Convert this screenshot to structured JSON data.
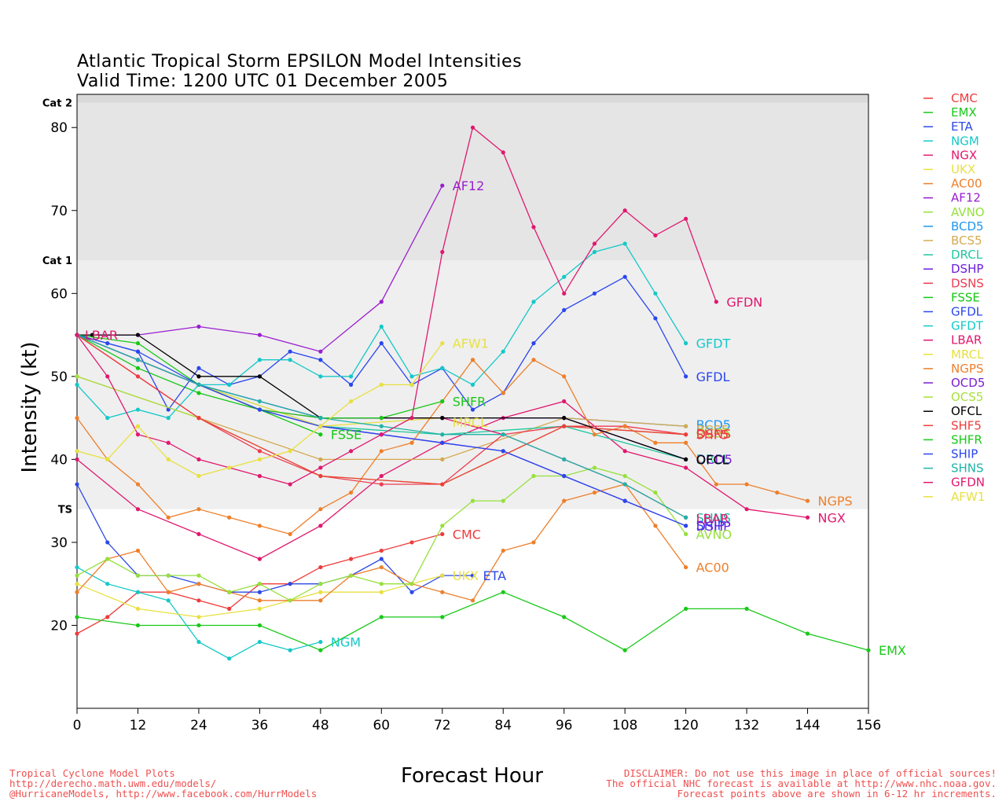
{
  "title": {
    "line1": "Atlantic Tropical Storm EPSILON Model Intensities",
    "line2": "Valid Time: 1200 UTC 01 December 2005"
  },
  "footer": {
    "left": [
      "Tropical Cyclone Model Plots",
      "http://derecho.math.uwm.edu/models/",
      "@HurricaneModels, http://www.facebook.com/HurrModels"
    ],
    "right": [
      "DISCLAIMER: Do not use this image in place of official sources!",
      "The official NHC forecast is available at http://www.nhc.noaa.gov.",
      "Forecast points above are shown in 6-12 hr increments."
    ]
  },
  "chart_data": {
    "type": "line",
    "xlabel": "Forecast Hour",
    "ylabel": "Intensity (kt)",
    "xlim": [
      0,
      156
    ],
    "ylim": [
      10,
      84
    ],
    "xticks": [
      0,
      12,
      24,
      36,
      48,
      60,
      72,
      84,
      96,
      108,
      120,
      132,
      144,
      156
    ],
    "yticks": [
      20,
      30,
      40,
      50,
      60,
      70,
      80
    ],
    "category_bands": [
      {
        "label": "TS",
        "from": 34,
        "to": 64,
        "color": "#efefef"
      },
      {
        "label": "Cat 1",
        "from": 64,
        "to": 83,
        "color": "#e5e5e5"
      },
      {
        "label": "Cat 2",
        "from": 83,
        "to": 84,
        "color": "#d9d9d9"
      }
    ],
    "series": [
      {
        "name": "CMC",
        "color": "#ef3b3b",
        "x": [
          0,
          6,
          12,
          18,
          24,
          30,
          36,
          42,
          48,
          54,
          60,
          66,
          72
        ],
        "y": [
          19,
          21,
          24,
          24,
          23,
          22,
          25,
          25,
          27,
          28,
          29,
          30,
          31
        ]
      },
      {
        "name": "EMX",
        "color": "#19c919",
        "x": [
          0,
          12,
          24,
          36,
          48,
          60,
          72,
          84,
          96,
          108,
          120,
          132,
          144,
          156
        ],
        "y": [
          21,
          20,
          20,
          20,
          17,
          21,
          21,
          24,
          21,
          17,
          22,
          22,
          19,
          17
        ]
      },
      {
        "name": "ETA",
        "color": "#2d4ae6",
        "x": [
          0,
          6,
          12,
          18,
          24,
          30,
          36,
          42,
          48,
          54,
          60,
          66,
          72,
          78
        ],
        "y": [
          37,
          30,
          26,
          26,
          25,
          24,
          24,
          25,
          25,
          26,
          28,
          24,
          26,
          26
        ]
      },
      {
        "name": "NGM",
        "color": "#14c8c8",
        "x": [
          0,
          6,
          12,
          18,
          24,
          30,
          36,
          42,
          48
        ],
        "y": [
          27,
          25,
          24,
          23,
          18,
          16,
          18,
          17,
          18
        ]
      },
      {
        "name": "NGX",
        "color": "#e0186e",
        "x": [
          0,
          12,
          24,
          36,
          48,
          60,
          72,
          84,
          96,
          108,
          120,
          132,
          144
        ],
        "y": [
          40,
          34,
          31,
          28,
          32,
          38,
          42,
          45,
          47,
          41,
          39,
          34,
          33
        ]
      },
      {
        "name": "UKX",
        "color": "#e8e040",
        "x": [
          0,
          12,
          24,
          36,
          48,
          60,
          72
        ],
        "y": [
          25,
          22,
          21,
          22,
          24,
          24,
          26
        ]
      },
      {
        "name": "AC00",
        "color": "#ee7f2a",
        "x": [
          0,
          6,
          12,
          18,
          24,
          30,
          36,
          42,
          48,
          54,
          60,
          66,
          72,
          78,
          84,
          90,
          96,
          102,
          108,
          114,
          120
        ],
        "y": [
          24,
          28,
          29,
          24,
          25,
          24,
          23,
          23,
          23,
          26,
          27,
          25,
          24,
          23,
          29,
          30,
          35,
          36,
          37,
          32,
          27
        ]
      },
      {
        "name": "AF12",
        "color": "#9a1ed0",
        "x": [
          0,
          12,
          24,
          36,
          48,
          60,
          72
        ],
        "y": [
          55,
          55,
          56,
          55,
          53,
          59,
          73
        ]
      },
      {
        "name": "AVNO",
        "color": "#96e03c",
        "x": [
          0,
          6,
          12,
          18,
          24,
          30,
          36,
          42,
          48,
          54,
          60,
          66,
          72,
          78,
          84,
          90,
          96,
          102,
          108,
          114,
          120
        ],
        "y": [
          26,
          28,
          26,
          26,
          26,
          24,
          25,
          23,
          25,
          26,
          25,
          25,
          32,
          35,
          35,
          38,
          38,
          39,
          38,
          36,
          31
        ]
      },
      {
        "name": "BCD5",
        "color": "#1e96ee",
        "x": [
          0,
          24,
          48,
          72,
          96,
          120
        ],
        "y": [
          55,
          49,
          45,
          45,
          45,
          44
        ]
      },
      {
        "name": "BCS5",
        "color": "#d4aa50",
        "x": [
          0,
          24,
          48,
          72,
          96,
          120
        ],
        "y": [
          50,
          45,
          40,
          40,
          45,
          44
        ]
      },
      {
        "name": "DRCL",
        "color": "#20c8a0",
        "x": [
          0,
          24,
          48,
          72,
          96,
          120
        ],
        "y": [
          55,
          49,
          44,
          43,
          44,
          40
        ]
      },
      {
        "name": "DSHP",
        "color": "#6a1ee0",
        "x": [
          0,
          12,
          24,
          36,
          48,
          60,
          72,
          84,
          96,
          108,
          120
        ],
        "y": [
          55,
          52,
          49,
          46,
          44,
          43,
          42,
          41,
          38,
          35,
          32
        ]
      },
      {
        "name": "DSNS",
        "color": "#ee3c50",
        "x": [
          0,
          12,
          24,
          36,
          48,
          60,
          72,
          84,
          96,
          108,
          120
        ],
        "y": [
          55,
          50,
          45,
          41,
          38,
          37,
          37,
          43,
          44,
          44,
          43
        ]
      },
      {
        "name": "FSSE",
        "color": "#14c814",
        "x": [
          0,
          12,
          24,
          36,
          48
        ],
        "y": [
          55,
          51,
          48,
          46,
          43
        ]
      },
      {
        "name": "GFDL",
        "color": "#2a46ee",
        "x": [
          0,
          6,
          12,
          18,
          24,
          30,
          36,
          42,
          48,
          54,
          60,
          66,
          72,
          78,
          84,
          90,
          96,
          102,
          108,
          114,
          120
        ],
        "y": [
          55,
          54,
          53,
          46,
          51,
          49,
          50,
          53,
          52,
          49,
          54,
          49,
          51,
          46,
          48,
          54,
          58,
          60,
          62,
          57,
          50
        ]
      },
      {
        "name": "GFDT",
        "color": "#14c8c8",
        "x": [
          0,
          6,
          12,
          18,
          24,
          30,
          36,
          42,
          48,
          54,
          60,
          66,
          72,
          78,
          84,
          90,
          96,
          102,
          108,
          114,
          120
        ],
        "y": [
          49,
          45,
          46,
          45,
          49,
          49,
          52,
          52,
          50,
          50,
          56,
          50,
          51,
          49,
          53,
          59,
          62,
          65,
          66,
          60,
          54
        ]
      },
      {
        "name": "LBAR",
        "color": "#e0186e",
        "x": [
          0,
          12,
          24,
          36,
          48,
          60,
          72,
          84,
          96,
          108,
          120
        ],
        "y": [
          55,
          52,
          49,
          46,
          45,
          45,
          45,
          43,
          40,
          37,
          33
        ]
      },
      {
        "name": "MRCL",
        "color": "#e8e040",
        "x": [
          0,
          24,
          48,
          72
        ],
        "y": [
          55,
          49,
          44,
          45
        ]
      },
      {
        "name": "NGPS",
        "color": "#ee7f2a",
        "x": [
          0,
          6,
          12,
          18,
          24,
          30,
          36,
          42,
          48,
          54,
          60,
          66,
          72,
          78,
          84,
          90,
          96,
          102,
          108,
          114,
          120,
          126,
          132,
          138,
          144
        ],
        "y": [
          45,
          40,
          37,
          33,
          34,
          33,
          32,
          31,
          34,
          36,
          41,
          42,
          47,
          52,
          48,
          52,
          50,
          43,
          44,
          42,
          42,
          37,
          37,
          36,
          35
        ]
      },
      {
        "name": "OCD5",
        "color": "#7a1ed0",
        "x": [
          0,
          24,
          48,
          72,
          96,
          120
        ],
        "y": [
          55,
          49,
          45,
          45,
          45,
          40
        ]
      },
      {
        "name": "OCS5",
        "color": "#a8e03c",
        "x": [
          0,
          24,
          48,
          72,
          96,
          120
        ],
        "y": [
          50,
          45,
          38,
          37,
          44,
          43
        ]
      },
      {
        "name": "OFCL",
        "color": "#000000",
        "x": [
          0,
          3,
          12,
          24,
          36,
          48,
          72,
          96,
          120
        ],
        "y": [
          55,
          55,
          55,
          50,
          50,
          45,
          45,
          45,
          40
        ]
      },
      {
        "name": "SHF5",
        "color": "#ef3b3b",
        "x": [
          0,
          24,
          48,
          72,
          96,
          120
        ],
        "y": [
          55,
          45,
          38,
          37,
          44,
          43
        ]
      },
      {
        "name": "SHFR",
        "color": "#19c919",
        "x": [
          0,
          12,
          24,
          36,
          48,
          60,
          72
        ],
        "y": [
          55,
          54,
          49,
          46,
          45,
          45,
          47
        ]
      },
      {
        "name": "SHIP",
        "color": "#2a46ee",
        "x": [
          0,
          12,
          24,
          36,
          48,
          60,
          72,
          84,
          96,
          108,
          120
        ],
        "y": [
          55,
          53,
          49,
          46,
          44,
          43,
          42,
          41,
          38,
          35,
          32
        ]
      },
      {
        "name": "SHNS",
        "color": "#20b4a8",
        "x": [
          0,
          12,
          24,
          36,
          48,
          60,
          72,
          84,
          96,
          108,
          120
        ],
        "y": [
          55,
          52,
          49,
          47,
          45,
          44,
          43,
          43,
          40,
          37,
          33
        ]
      },
      {
        "name": "GFDN",
        "color": "#e0186e",
        "x": [
          0,
          6,
          12,
          18,
          24,
          30,
          36,
          42,
          48,
          54,
          60,
          66,
          72,
          78,
          84,
          90,
          96,
          102,
          108,
          114,
          120,
          126
        ],
        "y": [
          55,
          50,
          43,
          42,
          40,
          39,
          38,
          37,
          39,
          41,
          43,
          45,
          65,
          80,
          77,
          68,
          60,
          66,
          70,
          67,
          69,
          59
        ]
      },
      {
        "name": "AFW1",
        "color": "#e8e040",
        "x": [
          0,
          6,
          12,
          18,
          24,
          30,
          36,
          42,
          48,
          54,
          60,
          66,
          72
        ],
        "y": [
          41,
          40,
          44,
          40,
          38,
          39,
          40,
          41,
          44,
          47,
          49,
          49,
          54
        ]
      }
    ],
    "end_labels": [
      {
        "text": "LBAR",
        "series": "LBAR",
        "x": 0,
        "y": 55,
        "offset": "right-near"
      },
      {
        "text": "AF12",
        "series": "AF12",
        "x": 72,
        "y": 73
      },
      {
        "text": "AFW1",
        "series": "AFW1",
        "x": 72,
        "y": 54
      },
      {
        "text": "SHFR",
        "series": "SHFR",
        "x": 72,
        "y": 47
      },
      {
        "text": "MRCL",
        "series": "MRCL",
        "x": 72,
        "y": 44.5
      },
      {
        "text": "FSSE",
        "series": "FSSE",
        "x": 48,
        "y": 43
      },
      {
        "text": "CMC",
        "series": "CMC",
        "x": 72,
        "y": 31
      },
      {
        "text": "UKX",
        "series": "UKX",
        "x": 72,
        "y": 26
      },
      {
        "text": "ETA",
        "series": "ETA",
        "x": 78,
        "y": 26
      },
      {
        "text": "NGM",
        "series": "NGM",
        "x": 48,
        "y": 18
      },
      {
        "text": "GFDN",
        "series": "GFDN",
        "x": 126,
        "y": 59
      },
      {
        "text": "GFDT",
        "series": "GFDT",
        "x": 120,
        "y": 54
      },
      {
        "text": "GFDL",
        "series": "GFDL",
        "x": 120,
        "y": 50
      },
      {
        "text": "BCD5",
        "series": "BCD5",
        "x": 120,
        "y": 44.2
      },
      {
        "text": "BCS5",
        "series": "BCS5",
        "x": 120,
        "y": 43.6
      },
      {
        "text": "OCS5",
        "series": "OCS5",
        "x": 120,
        "y": 43.2
      },
      {
        "text": "DSNS",
        "series": "DSNS",
        "x": 120,
        "y": 43.1
      },
      {
        "text": "SHF5",
        "series": "SHF5",
        "x": 120,
        "y": 43
      },
      {
        "text": "DRCL",
        "series": "DRCL",
        "x": 120,
        "y": 40.1
      },
      {
        "text": "OCD5",
        "series": "OCD5",
        "x": 120,
        "y": 40.05
      },
      {
        "text": "OFCL",
        "series": "OFCL",
        "x": 120,
        "y": 40
      },
      {
        "text": "NGPS",
        "series": "NGPS",
        "x": 144,
        "y": 35
      },
      {
        "text": "NGX",
        "series": "NGX",
        "x": 144,
        "y": 33
      },
      {
        "text": "SHNS",
        "series": "SHNS",
        "x": 120,
        "y": 33
      },
      {
        "text": "LBAR",
        "series": "LBAR",
        "x": 120,
        "y": 32.9
      },
      {
        "text": "SHIP",
        "series": "SHIP",
        "x": 120,
        "y": 32.1
      },
      {
        "text": "DSHP",
        "series": "DSHP",
        "x": 120,
        "y": 32
      },
      {
        "text": "AVNO",
        "series": "AVNO",
        "x": 120,
        "y": 31
      },
      {
        "text": "AC00",
        "series": "AC00",
        "x": 120,
        "y": 27
      },
      {
        "text": "EMX",
        "series": "EMX",
        "x": 156,
        "y": 17
      }
    ]
  }
}
